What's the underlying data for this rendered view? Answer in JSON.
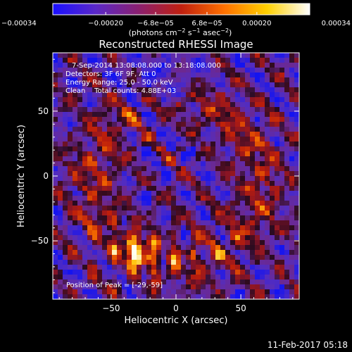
{
  "chart_data": {
    "type": "heatmap",
    "title": "Reconstructed RHESSI Image",
    "xlabel": "Heliocentric X (arcsec)",
    "ylabel": "Heliocentric Y (arcsec)",
    "xlim": [
      -95,
      95
    ],
    "ylim": [
      -95,
      95
    ],
    "x_ticks": [
      -50,
      0,
      50
    ],
    "y_ticks": [
      -50,
      0,
      50
    ],
    "x_tick_labels": [
      "−50",
      "0",
      "50"
    ],
    "y_tick_labels": [
      "−50",
      "0",
      "50"
    ],
    "colorbar": {
      "range": [
        -0.00034,
        0.00034
      ],
      "ticks": [
        -0.00034,
        -0.0002,
        -6.8e-05,
        6.8e-05,
        0.0002,
        0.00034
      ],
      "tick_labels": [
        "−0.00034",
        "−0.00020",
        "−6.8e−05",
        "6.8e−05",
        "0.00020",
        "0.00034"
      ],
      "unit_prefix": "(photons cm",
      "unit_exp1": "−2",
      "unit_mid1": " s",
      "unit_exp2": "−1",
      "unit_mid2": " asec",
      "unit_exp3": "−2",
      "unit_suffix": ")",
      "colors": [
        "#1a10ff",
        "#5a28c8",
        "#8a2070",
        "#c02010",
        "#ff7000",
        "#ffd000",
        "#ffffff"
      ]
    },
    "annotations": [
      "7-Sep-2014 13:08:08.000 to 13:18:08.000",
      "Detectors: 3F 6F 9F, Att 0",
      "Energy Range: 25.0 - 50.0 keV",
      "Clean    Total counts: 4.88E+03"
    ],
    "peak_label": "Position of Peak = [-29,-59]",
    "peak_position": [
      -29,
      -59
    ],
    "grid": false
  },
  "footer_timestamp": "11-Feb-2017 05:18"
}
